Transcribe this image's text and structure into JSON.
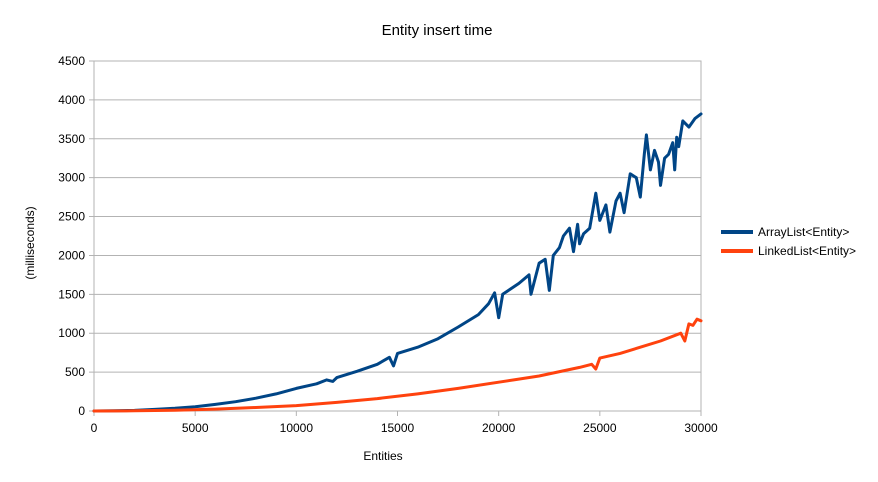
{
  "chart_data": {
    "type": "line",
    "title": "Entity insert time",
    "xlabel": "Entities",
    "ylabel": "(milliseconds)",
    "xlim": [
      0,
      30000
    ],
    "ylim": [
      0,
      4500
    ],
    "x_ticks": [
      0,
      5000,
      10000,
      15000,
      20000,
      25000,
      30000
    ],
    "x_tick_labels": [
      "0",
      "5000",
      "10000",
      "15000",
      "20000",
      "25000",
      "30000"
    ],
    "y_ticks": [
      0,
      500,
      1000,
      1500,
      2000,
      2500,
      3000,
      3500,
      4000,
      4500
    ],
    "y_tick_labels": [
      "0",
      "500",
      "1000",
      "1500",
      "2000",
      "2500",
      "3000",
      "3500",
      "4000",
      "4500"
    ],
    "grid": "horizontal",
    "legend_position": "right",
    "series": [
      {
        "name": "ArrayList<Entity>",
        "color": "#004586",
        "points": [
          [
            0,
            0
          ],
          [
            1000,
            2
          ],
          [
            2000,
            8
          ],
          [
            3000,
            20
          ],
          [
            4000,
            35
          ],
          [
            5000,
            55
          ],
          [
            6000,
            85
          ],
          [
            7000,
            120
          ],
          [
            8000,
            165
          ],
          [
            9000,
            220
          ],
          [
            10000,
            290
          ],
          [
            11000,
            350
          ],
          [
            11500,
            400
          ],
          [
            11800,
            380
          ],
          [
            12000,
            430
          ],
          [
            13000,
            510
          ],
          [
            14000,
            600
          ],
          [
            14600,
            690
          ],
          [
            14800,
            580
          ],
          [
            15000,
            740
          ],
          [
            16000,
            820
          ],
          [
            17000,
            930
          ],
          [
            18000,
            1080
          ],
          [
            19000,
            1240
          ],
          [
            19500,
            1380
          ],
          [
            19800,
            1520
          ],
          [
            20000,
            1200
          ],
          [
            20200,
            1500
          ],
          [
            21000,
            1640
          ],
          [
            21500,
            1750
          ],
          [
            21600,
            1500
          ],
          [
            22000,
            1900
          ],
          [
            22300,
            1950
          ],
          [
            22500,
            1550
          ],
          [
            22700,
            2000
          ],
          [
            23000,
            2100
          ],
          [
            23200,
            2250
          ],
          [
            23500,
            2350
          ],
          [
            23700,
            2050
          ],
          [
            23900,
            2400
          ],
          [
            24000,
            2150
          ],
          [
            24200,
            2280
          ],
          [
            24500,
            2350
          ],
          [
            24800,
            2800
          ],
          [
            25000,
            2450
          ],
          [
            25300,
            2650
          ],
          [
            25500,
            2300
          ],
          [
            25800,
            2700
          ],
          [
            26000,
            2800
          ],
          [
            26200,
            2550
          ],
          [
            26500,
            3050
          ],
          [
            26800,
            3000
          ],
          [
            27000,
            2750
          ],
          [
            27200,
            3300
          ],
          [
            27300,
            3550
          ],
          [
            27500,
            3100
          ],
          [
            27700,
            3350
          ],
          [
            27900,
            3200
          ],
          [
            28000,
            2900
          ],
          [
            28200,
            3250
          ],
          [
            28400,
            3300
          ],
          [
            28600,
            3450
          ],
          [
            28700,
            3100
          ],
          [
            28800,
            3520
          ],
          [
            28900,
            3400
          ],
          [
            29100,
            3730
          ],
          [
            29400,
            3650
          ],
          [
            29700,
            3760
          ],
          [
            30000,
            3820
          ]
        ]
      },
      {
        "name": "LinkedList<Entity>",
        "color": "#ff420e",
        "points": [
          [
            0,
            0
          ],
          [
            2000,
            3
          ],
          [
            4000,
            10
          ],
          [
            6000,
            25
          ],
          [
            8000,
            45
          ],
          [
            10000,
            70
          ],
          [
            12000,
            110
          ],
          [
            14000,
            160
          ],
          [
            16000,
            220
          ],
          [
            18000,
            290
          ],
          [
            20000,
            370
          ],
          [
            22000,
            450
          ],
          [
            24000,
            560
          ],
          [
            24600,
            600
          ],
          [
            24800,
            540
          ],
          [
            25000,
            680
          ],
          [
            26000,
            740
          ],
          [
            27000,
            820
          ],
          [
            28000,
            900
          ],
          [
            29000,
            1000
          ],
          [
            29200,
            900
          ],
          [
            29400,
            1120
          ],
          [
            29600,
            1100
          ],
          [
            29800,
            1180
          ],
          [
            30000,
            1160
          ]
        ]
      }
    ]
  }
}
